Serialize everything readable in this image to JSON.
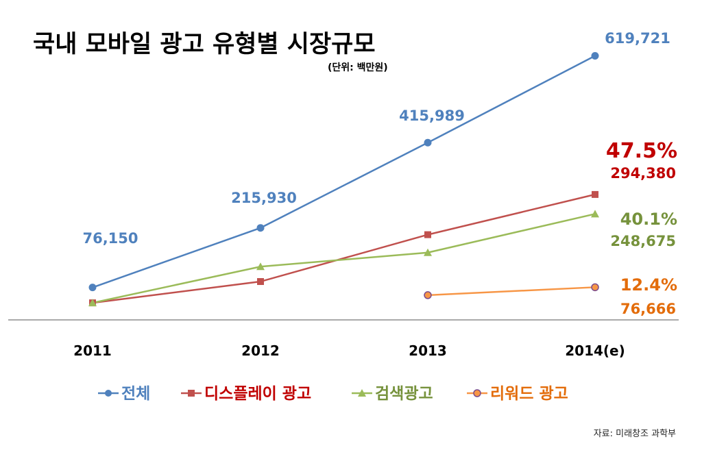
{
  "chart_data": {
    "type": "line",
    "title": "국내 모바일 광고 유형별 시장규모",
    "unit_note": "(단위: 백만원)",
    "categories": [
      "2011",
      "2012",
      "2013",
      "2014(e)"
    ],
    "ylim": [
      0,
      650000
    ],
    "grid": false,
    "legend_position": "bottom",
    "series": [
      {
        "name": "전체",
        "color": "#4f81bd",
        "marker": "circle",
        "values": [
          76150,
          215930,
          415989,
          619721
        ],
        "labels": [
          "76,150",
          "215,930",
          "415,989",
          "619,721"
        ]
      },
      {
        "name": "디스플레이 광고",
        "color": "#c0504d",
        "marker": "square",
        "values": [
          40000,
          90000,
          200000,
          294380
        ],
        "labels": [
          "",
          "",
          "",
          "294,380"
        ],
        "share_label": "47.5%"
      },
      {
        "name": "검색광고",
        "color": "#9bbb59",
        "marker": "triangle",
        "values": [
          40000,
          125000,
          158000,
          248675
        ],
        "labels": [
          "",
          "",
          "",
          "248,675"
        ],
        "share_label": "40.1%"
      },
      {
        "name": "리워드 광고",
        "color": "#f79646",
        "marker": "circle-outlined",
        "values": [
          null,
          null,
          58000,
          76666
        ],
        "labels": [
          "",
          "",
          "",
          "76,666"
        ],
        "share_label": "12.4%"
      }
    ],
    "source": "자료: 미래창조 과학부"
  },
  "colors": {
    "label_dark_red": "#c00000",
    "label_green": "#76923c",
    "label_orange": "#e36c0a"
  }
}
